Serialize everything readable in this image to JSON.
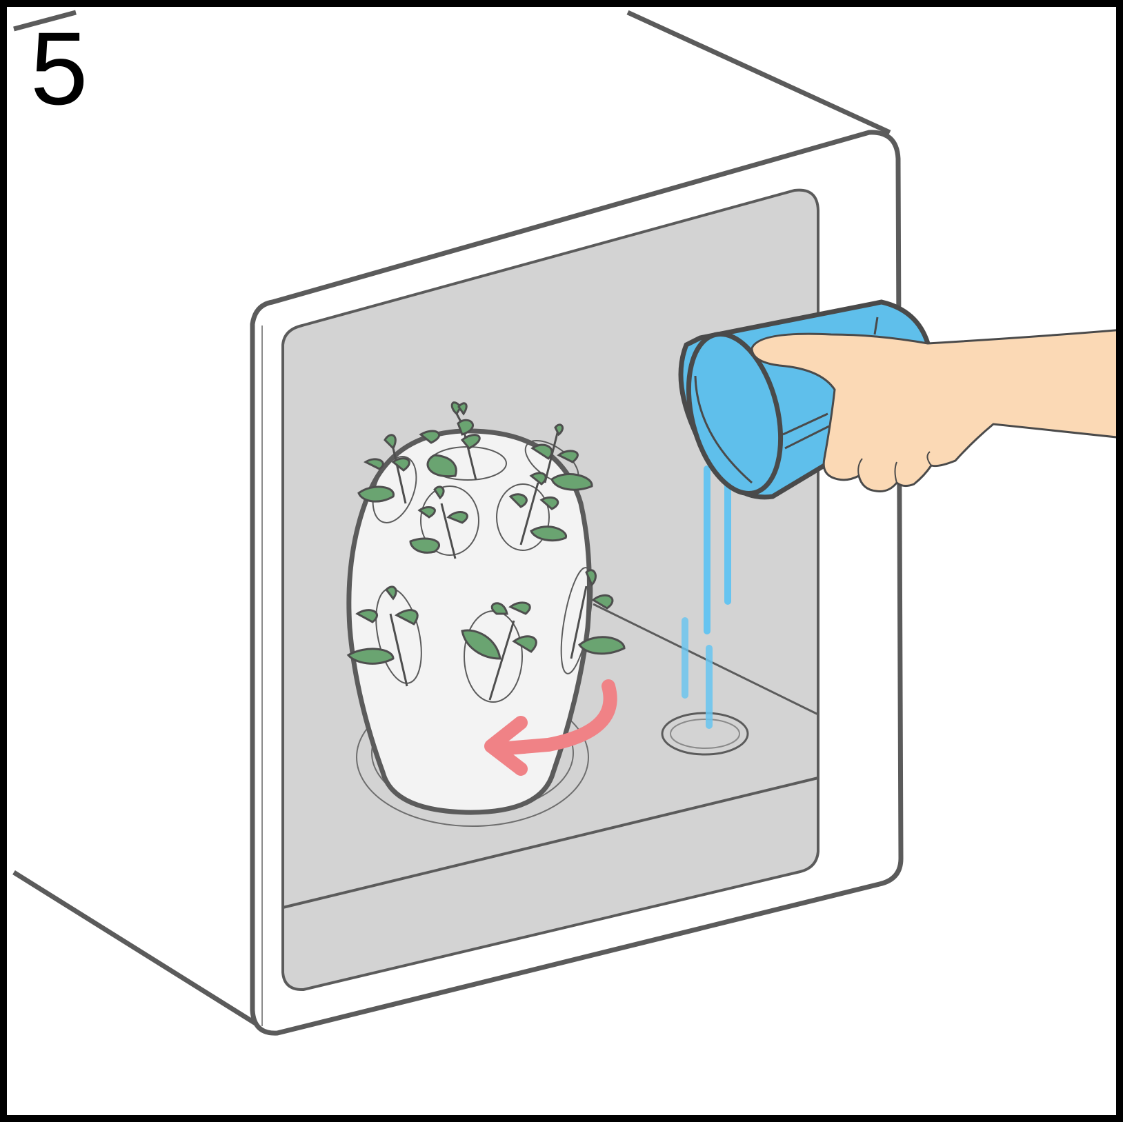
{
  "step": {
    "number": "5"
  },
  "colors": {
    "frame_border": "#000000",
    "cabinet_stroke": "#5b5b5b",
    "cabinet_fill": "#ffffff",
    "interior": "#d3d3d3",
    "planter": "#f3f3f3",
    "leaf": "#6aa471",
    "water_cup": "#5fbfeb",
    "water_stream": "#66c4f0",
    "hand": "#fbd9b5",
    "arrow": "#f08286"
  },
  "icons": {
    "rotation_arrow": "rotate-arrow-icon",
    "cup": "cup-icon",
    "hand": "hand-icon",
    "plant": "plant-icon"
  }
}
